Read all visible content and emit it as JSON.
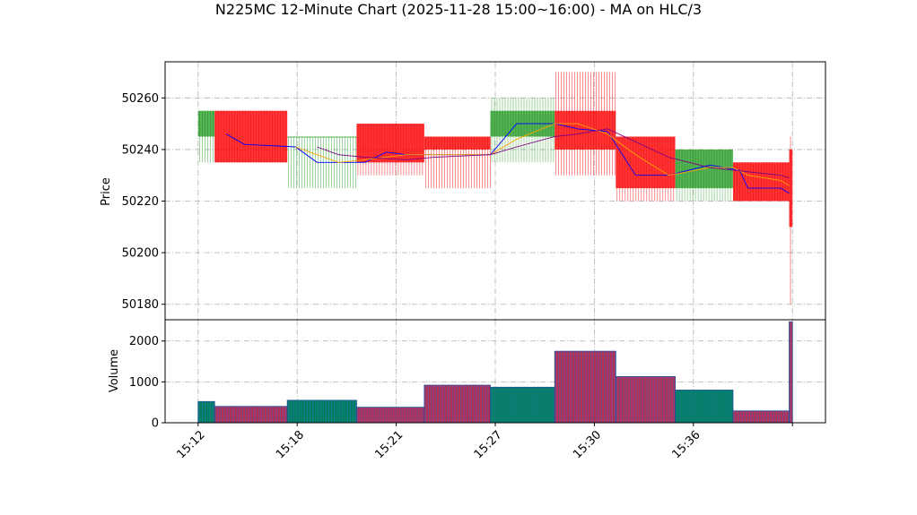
{
  "chart_data": {
    "type": "candlestick",
    "title": "N225MC 12-Minute Chart (2025-11-28 15:00~16:00) - MA on HLC/3",
    "price_panel": {
      "ylabel": "Price",
      "ylim": [
        50174,
        50274
      ],
      "yticks": [
        50180,
        50200,
        50220,
        50240,
        50260
      ],
      "grid": true
    },
    "volume_panel": {
      "ylabel": "Volume",
      "ylim": [
        0,
        2520
      ],
      "yticks": [
        0,
        1000,
        2000
      ],
      "grid": true
    },
    "xticks": [
      {
        "label": "15:12",
        "t": 0
      },
      {
        "label": "15:18",
        "t": 6
      },
      {
        "label": "15:21",
        "t": 12
      },
      {
        "label": "15:27",
        "t": 18
      },
      {
        "label": "15:30",
        "t": 24
      },
      {
        "label": "15:36",
        "t": 30
      },
      {
        "label": "",
        "t": 36
      }
    ],
    "xlim": [
      -2,
      38
    ],
    "bars": [
      {
        "start": 0,
        "end": 1,
        "open": 50245,
        "high": 50255,
        "low": 50235,
        "close": 50255,
        "volume": 520
      },
      {
        "start": 1,
        "end": 5.4,
        "open": 50255,
        "high": 50255,
        "low": 50235,
        "close": 50235,
        "volume": 400
      },
      {
        "start": 5.4,
        "end": 9.6,
        "open": 50245,
        "high": 50245,
        "low": 50225,
        "close": 50245,
        "volume": 550
      },
      {
        "start": 9.6,
        "end": 13.7,
        "open": 50250,
        "high": 50250,
        "low": 50230,
        "close": 50235,
        "volume": 380
      },
      {
        "start": 13.7,
        "end": 17.7,
        "open": 50245,
        "high": 50245,
        "low": 50225,
        "close": 50240,
        "volume": 920
      },
      {
        "start": 17.7,
        "end": 21.6,
        "open": 50245,
        "high": 50260,
        "low": 50235,
        "close": 50255,
        "volume": 870
      },
      {
        "start": 21.6,
        "end": 25.3,
        "open": 50255,
        "high": 50270,
        "low": 50230,
        "close": 50240,
        "volume": 1750
      },
      {
        "start": 25.3,
        "end": 28.9,
        "open": 50245,
        "high": 50245,
        "low": 50220,
        "close": 50225,
        "volume": 1130
      },
      {
        "start": 28.9,
        "end": 32.4,
        "open": 50225,
        "high": 50240,
        "low": 50220,
        "close": 50240,
        "volume": 800
      },
      {
        "start": 32.4,
        "end": 35.8,
        "open": 50235,
        "high": 50235,
        "low": 50220,
        "close": 50220,
        "volume": 290
      },
      {
        "start": 35.8,
        "end": 36,
        "open": 50240,
        "high": 50245,
        "low": 50180,
        "close": 50210,
        "volume": 2470
      }
    ],
    "ma_lines": [
      {
        "color": "#0000ff",
        "points": [
          [
            1.7,
            50246
          ],
          [
            2.8,
            50242
          ],
          [
            5.9,
            50241
          ],
          [
            7.2,
            50235
          ],
          [
            8.5,
            50235
          ],
          [
            10.1,
            50235
          ],
          [
            11.4,
            50239
          ],
          [
            12.6,
            50238
          ],
          [
            14.3,
            50238
          ],
          [
            16.2,
            50238
          ],
          [
            17.7,
            50238
          ],
          [
            19.3,
            50250
          ],
          [
            21.6,
            50250
          ],
          [
            23,
            50248
          ],
          [
            24.8,
            50247
          ],
          [
            26.5,
            50230
          ],
          [
            28.5,
            50230
          ],
          [
            31,
            50234
          ],
          [
            32.8,
            50232
          ],
          [
            33.3,
            50225
          ],
          [
            35.3,
            50225
          ],
          [
            35.8,
            50223
          ]
        ]
      },
      {
        "color": "#ffa500",
        "points": [
          [
            5.9,
            50241
          ],
          [
            7.2,
            50238
          ],
          [
            8.5,
            50235
          ],
          [
            10.1,
            50236
          ],
          [
            12.6,
            50238
          ],
          [
            14.3,
            50238
          ],
          [
            17.7,
            50238
          ],
          [
            19.3,
            50244
          ],
          [
            21.6,
            50250
          ],
          [
            23,
            50250
          ],
          [
            24.8,
            50246
          ],
          [
            26.5,
            50238
          ],
          [
            28.5,
            50230
          ],
          [
            31,
            50233
          ],
          [
            32.4,
            50233
          ],
          [
            33.3,
            50230
          ],
          [
            35.3,
            50228
          ],
          [
            35.8,
            50226
          ]
        ]
      },
      {
        "color": "#800080",
        "points": [
          [
            7.2,
            50241
          ],
          [
            8.5,
            50238
          ],
          [
            10.1,
            50237
          ],
          [
            12.6,
            50236
          ],
          [
            14.3,
            50237
          ],
          [
            17.7,
            50238
          ],
          [
            19.3,
            50241
          ],
          [
            21.6,
            50245
          ],
          [
            23,
            50246
          ],
          [
            24.8,
            50248
          ],
          [
            26.5,
            50243
          ],
          [
            28.5,
            50237
          ],
          [
            31,
            50233
          ],
          [
            32.4,
            50232
          ],
          [
            35.3,
            50230
          ],
          [
            35.8,
            50229
          ]
        ]
      }
    ]
  }
}
